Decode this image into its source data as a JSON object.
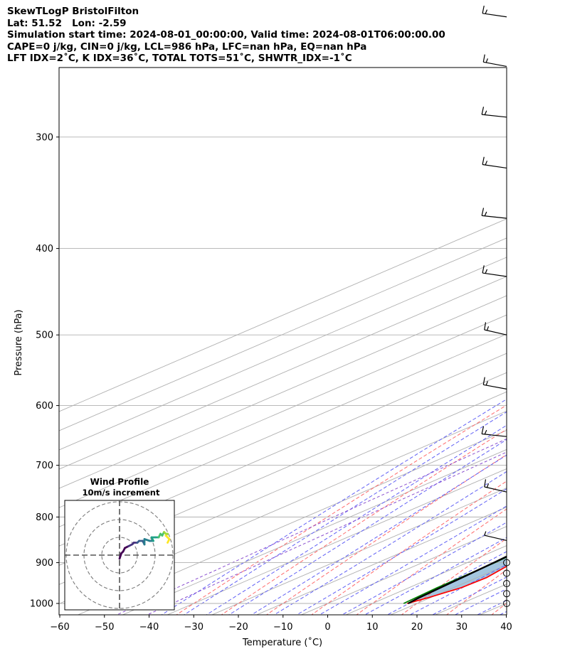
{
  "title_lines": [
    "SkewTLogP BristolFilton",
    "Lat: 51.52   Lon: -2.59",
    "Simulation start time: 2024-08-01_00:00:00, Valid time: 2024-08-01T06:00:00.00",
    "CAPE=0 j/kg, CIN=0 j/kg, LCL=986 hPa, LFC=nan hPa, EQ=nan hPa",
    "LFT IDX=2˚C, K IDX=36˚C, TOTAL TOTS=51˚C, SHWTR_IDX=-1˚C"
  ],
  "colors": {
    "temperature": "#ff0000",
    "dewpoint": "#008000",
    "parcel": "#000000",
    "shade": "#a3c6df",
    "dry_adiabat": "#ff6a6a",
    "moist_adiabat": "#5f5ff5",
    "mixing_ratio": "#8a4fcf",
    "isotherm": "#b0b0b0"
  },
  "chart_data": [
    {
      "type": "skewt-logp",
      "xlabel": "Temperature (˚C)",
      "ylabel": "Pressure (hPa)",
      "xlim": [
        -60,
        40
      ],
      "ylim": [
        1050,
        100
      ],
      "y_scale": "log",
      "grid": true,
      "x_ticks": [
        -60,
        -50,
        -40,
        -30,
        -20,
        -10,
        0,
        10,
        20,
        30,
        40
      ],
      "x_tick_labels": [
        "−60",
        "−50",
        "−40",
        "−30",
        "−20",
        "−10",
        "0",
        "10",
        "20",
        "30",
        "40"
      ],
      "y_ticks": [
        1000,
        900,
        800,
        700,
        600,
        500,
        400,
        300,
        200,
        100
      ],
      "y_tick_labels": [
        "1000",
        "900",
        "800",
        "700",
        "600",
        "500",
        "400",
        "300",
        "200",
        "100"
      ],
      "series": [
        {
          "key": "temperature",
          "points": [
            [
              1000,
              17.8
            ],
            [
              985,
              19.5
            ],
            [
              960,
              21.7
            ],
            [
              935,
              22.1
            ],
            [
              900,
              20.3
            ],
            [
              850,
              18.4
            ],
            [
              800,
              16.4
            ],
            [
              750,
              14.8
            ],
            [
              700,
              13.0
            ],
            [
              650,
              11.7
            ],
            [
              600,
              10.0
            ],
            [
              550,
              8.5
            ],
            [
              500,
              6.7
            ],
            [
              450,
              4.8
            ],
            [
              400,
              2.9
            ],
            [
              350,
              -0.4
            ],
            [
              300,
              -3.9
            ],
            [
              275,
              -6.5
            ],
            [
              250,
              -7.5
            ],
            [
              230,
              -5.7
            ],
            [
              215,
              -3.2
            ],
            [
              200,
              1.0
            ],
            [
              185,
              5.8
            ],
            [
              170,
              7.7
            ],
            [
              150,
              9.0
            ],
            [
              125,
              13.6
            ],
            [
              100,
              18.0
            ]
          ]
        },
        {
          "key": "dewpoint",
          "points": [
            [
              1000,
              17.0
            ],
            [
              960,
              16.3
            ],
            [
              900,
              16.2
            ],
            [
              850,
              15.2
            ],
            [
              800,
              13.2
            ],
            [
              750,
              11.6
            ],
            [
              700,
              10.4
            ],
            [
              650,
              10.1
            ],
            [
              600,
              9.5
            ],
            [
              550,
              7.8
            ],
            [
              500,
              5.4
            ],
            [
              470,
              3.3
            ],
            [
              430,
              -8.7
            ],
            [
              400,
              -13.5
            ],
            [
              380,
              -13.1
            ],
            [
              350,
              -13.7
            ],
            [
              330,
              -14.9
            ],
            [
              300,
              -16.5
            ],
            [
              275,
              -18.3
            ],
            [
              250,
              -20.3
            ],
            [
              220,
              -23.9
            ],
            [
              200,
              -27.7
            ],
            [
              185,
              -33.4
            ],
            [
              170,
              -35.4
            ],
            [
              150,
              -31.5
            ],
            [
              125,
              -30.2
            ],
            [
              100,
              -30.0
            ]
          ]
        },
        {
          "key": "parcel",
          "points": [
            [
              1000,
              18.0
            ],
            [
              986,
              17.5
            ],
            [
              900,
              16.0
            ],
            [
              800,
              13.6
            ],
            [
              700,
              10.8
            ],
            [
              600,
              7.2
            ],
            [
              500,
              2.8
            ],
            [
              400,
              -3.2
            ],
            [
              300,
              -12.3
            ],
            [
              250,
              -19.2
            ],
            [
              200,
              -27.8
            ],
            [
              150,
              -39.5
            ],
            [
              125,
              -46.8
            ],
            [
              100,
              -55.7
            ]
          ]
        }
      ],
      "wind_barbs": [
        {
          "p": 1000,
          "calm": true
        },
        {
          "p": 975,
          "calm": true
        },
        {
          "p": 950,
          "calm": true
        },
        {
          "p": 925,
          "calm": true
        },
        {
          "p": 900,
          "calm": true
        },
        {
          "p": 850,
          "speed_kt": 5,
          "dir_deg": 240
        },
        {
          "p": 750,
          "speed_kt": 15,
          "dir_deg": 240
        },
        {
          "p": 650,
          "speed_kt": 15,
          "dir_deg": 255
        },
        {
          "p": 575,
          "speed_kt": 15,
          "dir_deg": 245
        },
        {
          "p": 500,
          "speed_kt": 15,
          "dir_deg": 240
        },
        {
          "p": 430,
          "speed_kt": 15,
          "dir_deg": 250
        },
        {
          "p": 370,
          "speed_kt": 15,
          "dir_deg": 255
        },
        {
          "p": 325,
          "speed_kt": 15,
          "dir_deg": 250
        },
        {
          "p": 285,
          "speed_kt": 15,
          "dir_deg": 255
        },
        {
          "p": 250,
          "speed_kt": 15,
          "dir_deg": 245
        },
        {
          "p": 220,
          "speed_kt": 15,
          "dir_deg": 250
        },
        {
          "p": 195,
          "speed_kt": 15,
          "dir_deg": 250
        },
        {
          "p": 170,
          "speed_kt": 15,
          "dir_deg": 255
        },
        {
          "p": 150,
          "speed_kt": 15,
          "dir_deg": 255
        },
        {
          "p": 130,
          "speed_kt": 15,
          "dir_deg": 255
        },
        {
          "p": 115,
          "speed_kt": 15,
          "dir_deg": 260
        }
      ]
    },
    {
      "type": "hodograph",
      "title": "Wind Profile",
      "subtitle": "10m/s increment",
      "ring_increment_ms": 10,
      "rings": 3,
      "colormap": "viridis",
      "points": [
        [
          0,
          -2
        ],
        [
          1,
          1
        ],
        [
          2,
          2
        ],
        [
          3,
          4
        ],
        [
          5,
          5
        ],
        [
          7,
          6
        ],
        [
          8,
          7
        ],
        [
          10,
          7
        ],
        [
          11,
          8
        ],
        [
          13,
          8
        ],
        [
          14,
          6
        ],
        [
          14,
          9
        ],
        [
          17,
          8
        ],
        [
          19,
          8
        ],
        [
          18,
          10
        ],
        [
          20,
          10
        ],
        [
          22,
          10
        ],
        [
          23,
          12
        ],
        [
          24,
          11
        ],
        [
          25,
          13
        ],
        [
          26,
          12
        ],
        [
          27,
          12
        ],
        [
          26,
          11
        ],
        [
          27,
          10
        ],
        [
          28,
          9
        ],
        [
          27,
          7
        ]
      ]
    }
  ]
}
